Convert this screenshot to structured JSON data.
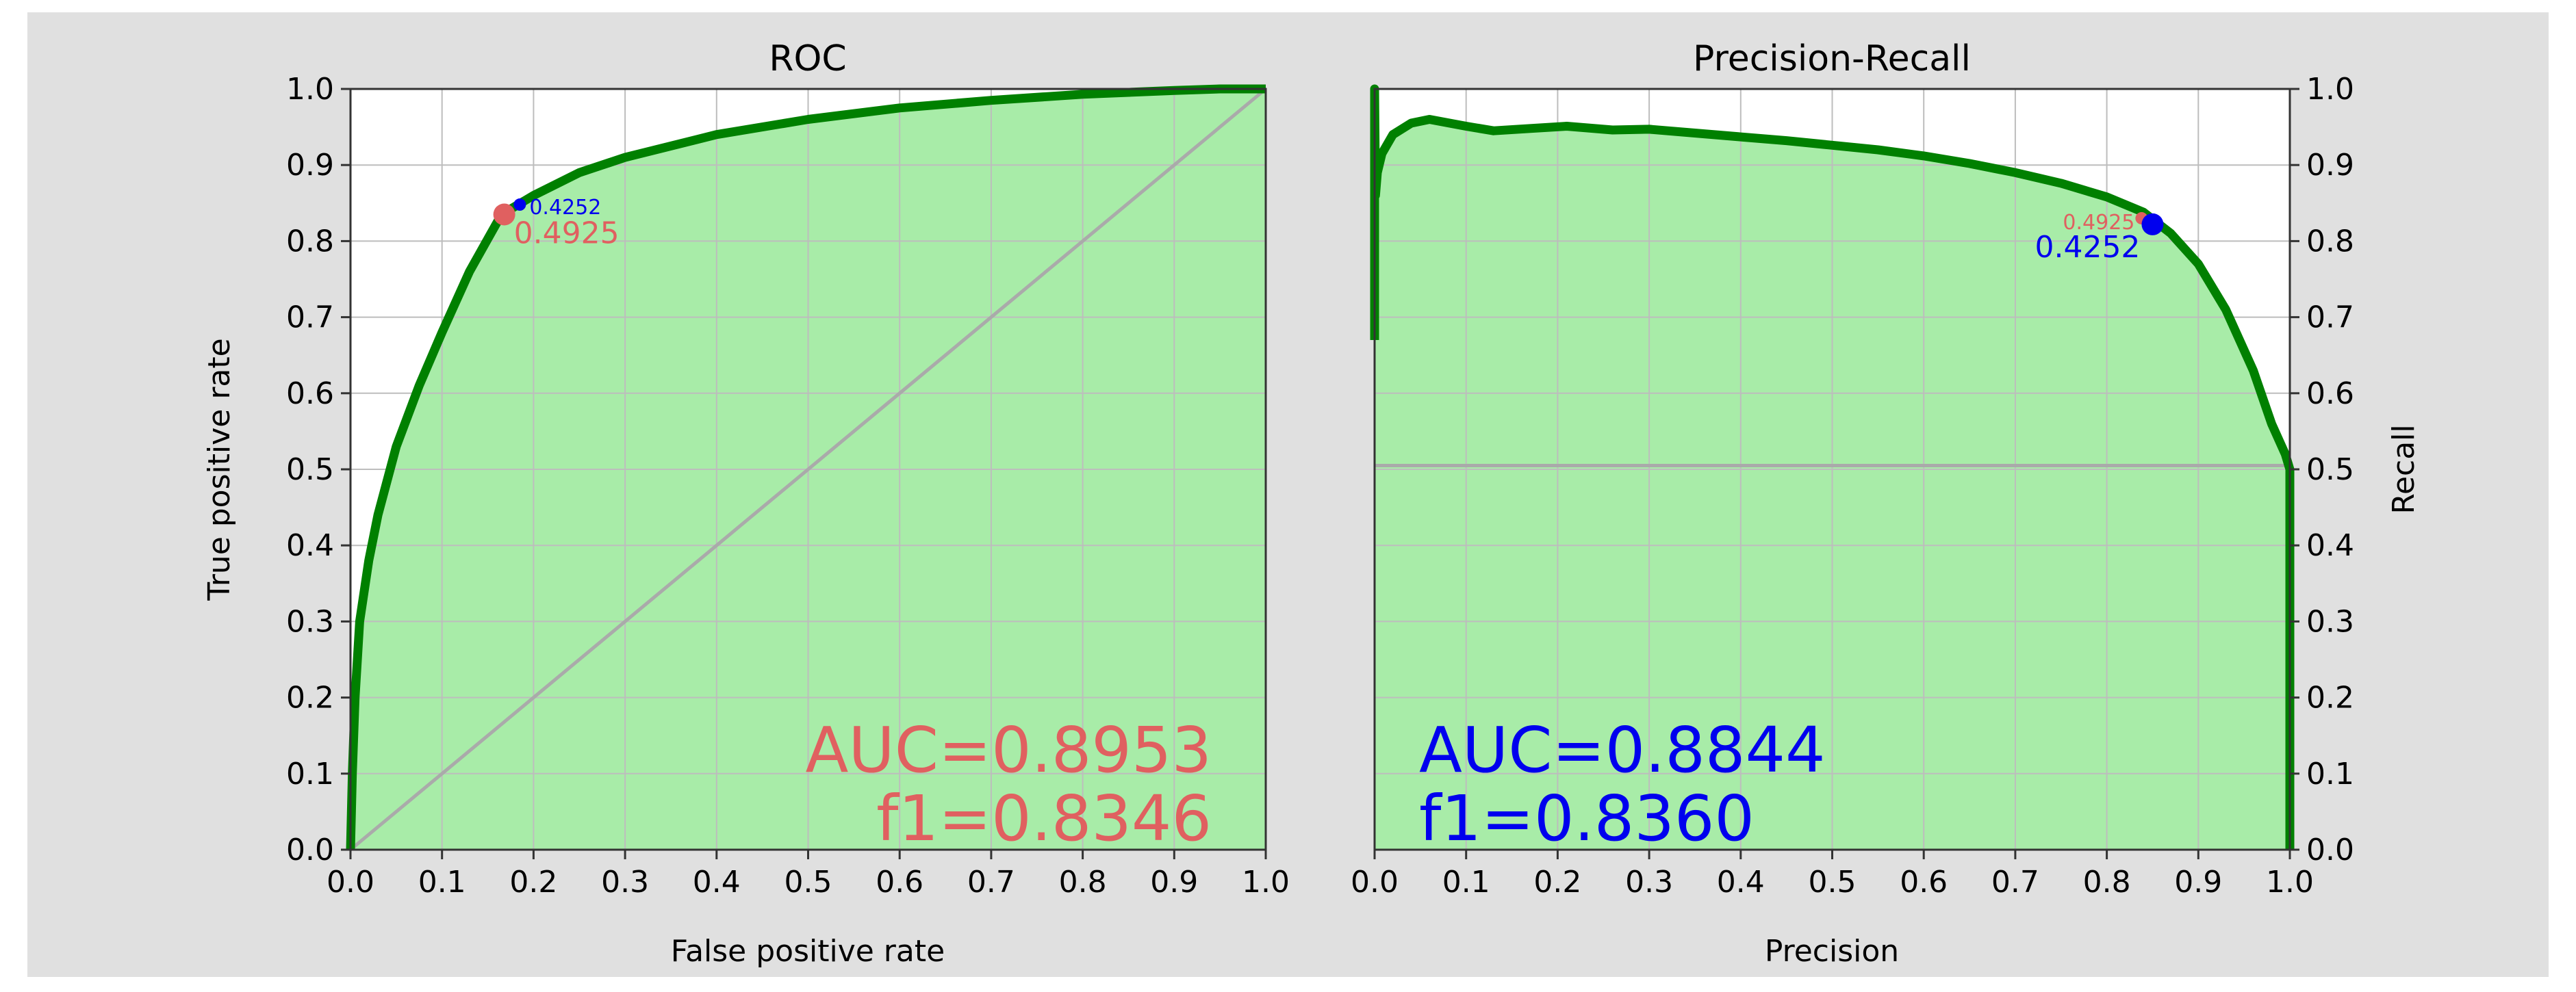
{
  "chart_data": [
    {
      "type": "area",
      "title": "ROC",
      "xlabel": "False positive rate",
      "ylabel": "True positive rate",
      "xlim": [
        0.0,
        1.0
      ],
      "ylim": [
        0.0,
        1.0
      ],
      "xticks": [
        "0.0",
        "0.1",
        "0.2",
        "0.3",
        "0.4",
        "0.5",
        "0.6",
        "0.7",
        "0.8",
        "0.9",
        "1.0"
      ],
      "yticks": [
        "0.0",
        "0.1",
        "0.2",
        "0.3",
        "0.4",
        "0.5",
        "0.6",
        "0.7",
        "0.8",
        "0.9",
        "1.0"
      ],
      "grid": true,
      "series": [
        {
          "role": "curve",
          "color": "#008000",
          "fill": "#a8eca8",
          "x": [
            0.0,
            0.002,
            0.005,
            0.01,
            0.02,
            0.03,
            0.05,
            0.075,
            0.1,
            0.13,
            0.165,
            0.2,
            0.25,
            0.3,
            0.4,
            0.5,
            0.6,
            0.7,
            0.8,
            0.9,
            0.95,
            1.0
          ],
          "y": [
            0.0,
            0.1,
            0.2,
            0.3,
            0.38,
            0.44,
            0.53,
            0.61,
            0.68,
            0.76,
            0.835,
            0.86,
            0.89,
            0.91,
            0.94,
            0.96,
            0.975,
            0.985,
            0.993,
            0.998,
            1.0,
            1.0
          ]
        },
        {
          "role": "baseline",
          "color": "#aaaaaa",
          "x": [
            0.0,
            1.0
          ],
          "y": [
            0.0,
            1.0
          ]
        }
      ],
      "markers": [
        {
          "label": "0.4925",
          "x": 0.168,
          "y": 0.835,
          "color": "#e06060",
          "size": "large"
        },
        {
          "label": "0.4252",
          "x": 0.185,
          "y": 0.848,
          "color": "#0000ee",
          "size": "small"
        }
      ],
      "annotations": [
        {
          "text": "AUC=0.8953",
          "color": "#e06060"
        },
        {
          "text": "f1=0.8346",
          "color": "#e06060"
        }
      ]
    },
    {
      "type": "area",
      "title": "Precision-Recall",
      "xlabel": "Precision",
      "ylabel": "Recall",
      "xlim": [
        0.0,
        1.0
      ],
      "ylim": [
        0.0,
        1.0
      ],
      "xticks": [
        "0.0",
        "0.1",
        "0.2",
        "0.3",
        "0.4",
        "0.5",
        "0.6",
        "0.7",
        "0.8",
        "0.9",
        "1.0"
      ],
      "yticks": [
        "0.0",
        "0.1",
        "0.2",
        "0.3",
        "0.4",
        "0.5",
        "0.6",
        "0.7",
        "0.8",
        "0.9",
        "1.0"
      ],
      "y_axis_side": "right",
      "grid": true,
      "series": [
        {
          "role": "curve",
          "color": "#008000",
          "fill": "#a8eca8",
          "x": [
            0.0,
            0.0,
            0.001,
            0.003,
            0.008,
            0.02,
            0.04,
            0.06,
            0.1,
            0.13,
            0.17,
            0.21,
            0.26,
            0.3,
            0.35,
            0.4,
            0.45,
            0.5,
            0.55,
            0.6,
            0.65,
            0.7,
            0.75,
            0.8,
            0.84,
            0.87,
            0.9,
            0.93,
            0.96,
            0.98,
            0.995,
            1.0,
            1.0
          ],
          "y": [
            0.67,
            1.0,
            0.86,
            0.89,
            0.915,
            0.94,
            0.955,
            0.96,
            0.951,
            0.945,
            0.948,
            0.951,
            0.946,
            0.947,
            0.942,
            0.937,
            0.932,
            0.926,
            0.92,
            0.912,
            0.902,
            0.89,
            0.876,
            0.858,
            0.838,
            0.81,
            0.77,
            0.71,
            0.63,
            0.56,
            0.52,
            0.5,
            0.0
          ]
        },
        {
          "role": "baseline",
          "color": "#aaaaaa",
          "x": [
            0.0,
            1.0
          ],
          "y": [
            0.505,
            0.505
          ]
        }
      ],
      "markers": [
        {
          "label": "0.4925",
          "x": 0.838,
          "y": 0.83,
          "color": "#e06060",
          "size": "small"
        },
        {
          "label": "0.4252",
          "x": 0.85,
          "y": 0.822,
          "color": "#0000ee",
          "size": "large"
        }
      ],
      "annotations": [
        {
          "text": "AUC=0.8844",
          "color": "#0000ee"
        },
        {
          "text": "f1=0.8360",
          "color": "#0000ee"
        }
      ]
    }
  ]
}
